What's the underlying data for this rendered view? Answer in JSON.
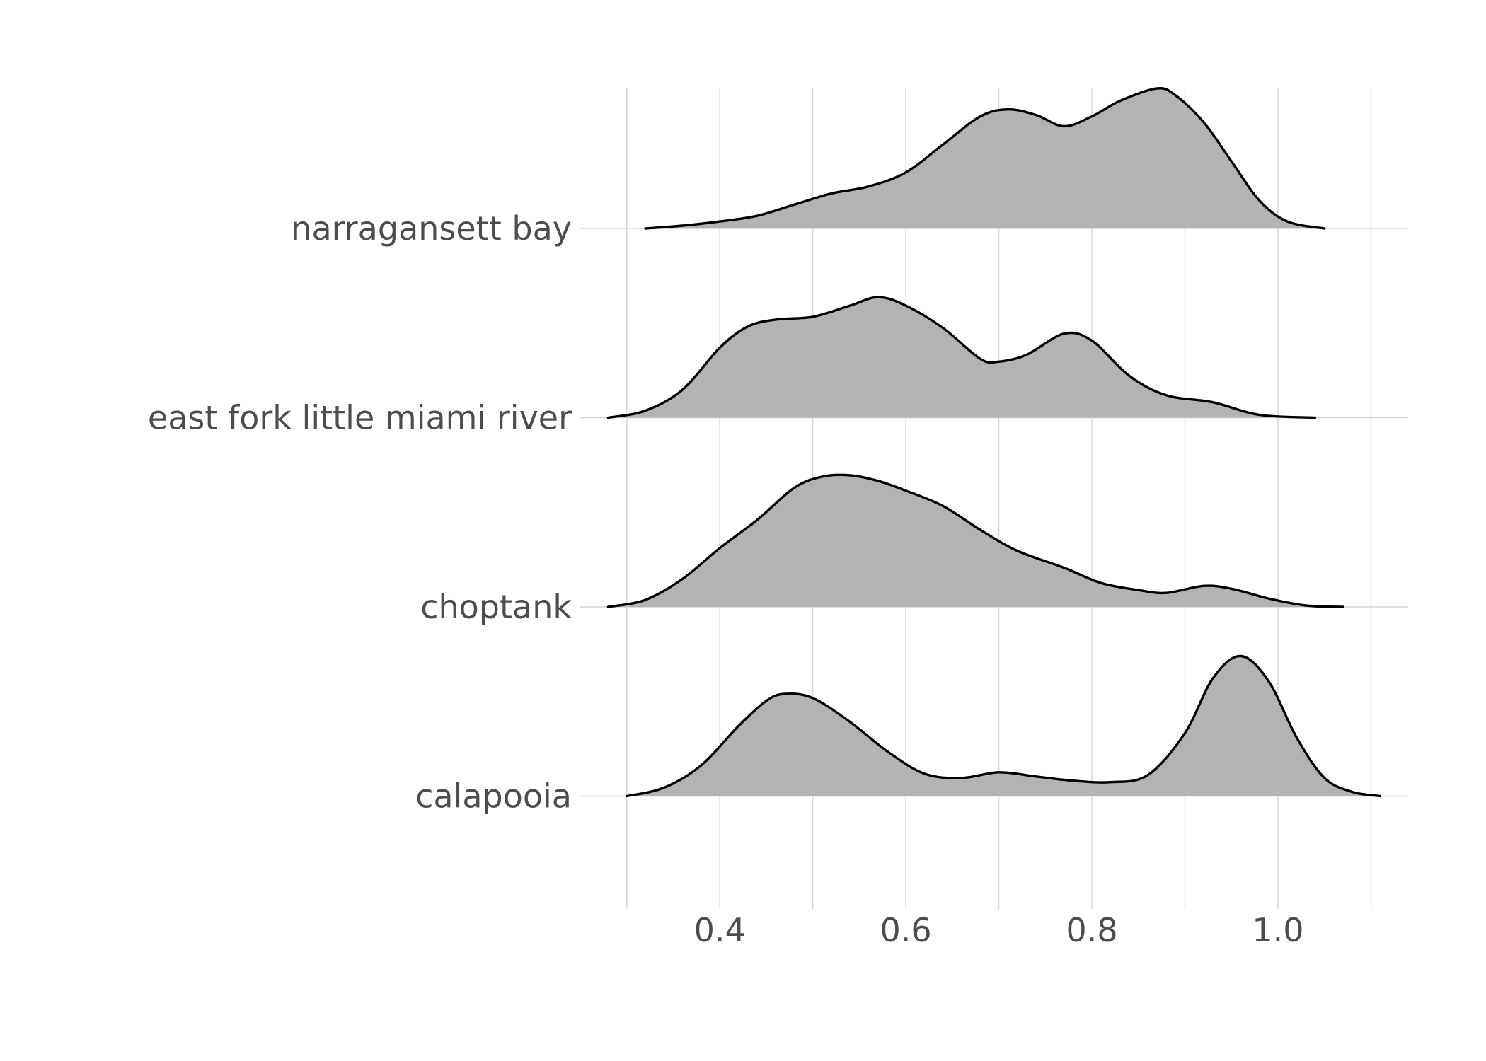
{
  "chart_data": {
    "type": "ridgeline",
    "title": "",
    "xlabel": "",
    "ylabel": "",
    "xlim": [
      0.25,
      1.14
    ],
    "x_ticks": [
      0.4,
      0.6,
      0.8,
      1.0
    ],
    "x_tick_labels": [
      "0.4",
      "0.6",
      "0.8",
      "1.0"
    ],
    "x_minor_gridlines": [
      0.3,
      0.5,
      0.7,
      0.9,
      1.1
    ],
    "grid": true,
    "fill_color": "#b3b3b3",
    "line_color": "#000000",
    "series": [
      {
        "name": "narragansett bay",
        "x": [
          0.32,
          0.36,
          0.4,
          0.44,
          0.48,
          0.52,
          0.56,
          0.6,
          0.64,
          0.68,
          0.71,
          0.74,
          0.77,
          0.8,
          0.83,
          0.87,
          0.89,
          0.92,
          0.95,
          0.98,
          1.01,
          1.05
        ],
        "density": [
          0.0,
          0.02,
          0.05,
          0.09,
          0.17,
          0.25,
          0.3,
          0.4,
          0.6,
          0.8,
          0.85,
          0.81,
          0.73,
          0.8,
          0.91,
          1.0,
          0.95,
          0.76,
          0.48,
          0.2,
          0.05,
          0.0
        ]
      },
      {
        "name": "east fork little miami river",
        "x": [
          0.28,
          0.32,
          0.36,
          0.4,
          0.43,
          0.46,
          0.5,
          0.54,
          0.57,
          0.6,
          0.64,
          0.68,
          0.7,
          0.73,
          0.77,
          0.8,
          0.84,
          0.88,
          0.93,
          0.98,
          1.04
        ],
        "density": [
          0.0,
          0.05,
          0.2,
          0.5,
          0.65,
          0.7,
          0.72,
          0.8,
          0.86,
          0.8,
          0.64,
          0.42,
          0.4,
          0.45,
          0.6,
          0.55,
          0.3,
          0.16,
          0.11,
          0.02,
          0.0
        ]
      },
      {
        "name": "choptank",
        "x": [
          0.28,
          0.32,
          0.36,
          0.4,
          0.44,
          0.48,
          0.51,
          0.54,
          0.57,
          0.6,
          0.64,
          0.68,
          0.72,
          0.77,
          0.81,
          0.85,
          0.88,
          0.92,
          0.95,
          0.99,
          1.03,
          1.07
        ],
        "density": [
          0.0,
          0.05,
          0.2,
          0.42,
          0.62,
          0.85,
          0.93,
          0.94,
          0.9,
          0.83,
          0.72,
          0.55,
          0.4,
          0.28,
          0.17,
          0.12,
          0.1,
          0.15,
          0.13,
          0.06,
          0.01,
          0.0
        ]
      },
      {
        "name": "calapooia",
        "x": [
          0.3,
          0.34,
          0.38,
          0.42,
          0.45,
          0.47,
          0.5,
          0.54,
          0.58,
          0.62,
          0.66,
          0.7,
          0.74,
          0.78,
          0.82,
          0.86,
          0.9,
          0.93,
          0.96,
          0.99,
          1.02,
          1.05,
          1.08,
          1.11
        ],
        "density": [
          0.0,
          0.06,
          0.22,
          0.5,
          0.68,
          0.73,
          0.7,
          0.53,
          0.32,
          0.16,
          0.13,
          0.17,
          0.14,
          0.11,
          0.1,
          0.15,
          0.45,
          0.84,
          1.0,
          0.82,
          0.42,
          0.13,
          0.03,
          0.0
        ]
      }
    ]
  }
}
